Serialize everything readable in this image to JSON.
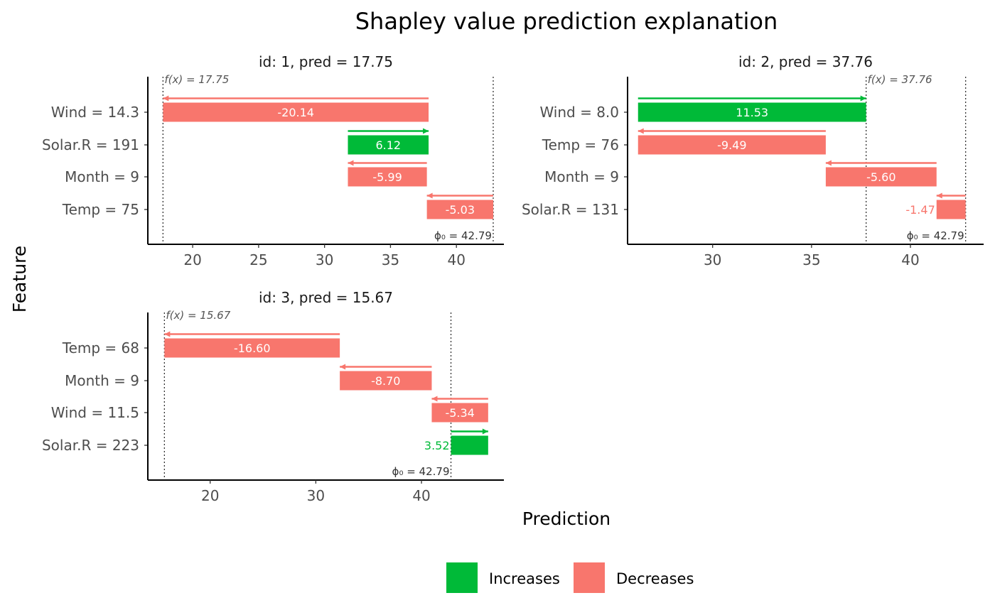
{
  "chart_data": {
    "type": "bar",
    "subtype": "waterfall",
    "title": "Shapley value prediction explanation",
    "xlabel": "Prediction",
    "ylabel": "Feature",
    "legend": {
      "position": "bottom",
      "entries": [
        {
          "name": "Increases",
          "color": "#00BA38"
        },
        {
          "name": "Decreases",
          "color": "#F8766D"
        }
      ]
    },
    "colors": {
      "increase": "#00BA38",
      "decrease": "#F8766D"
    },
    "panels": [
      {
        "title": "id: 1, pred = 17.75",
        "phi0_label": "ϕ₀ = 42.79",
        "fx_label": "f(x) = 17.75",
        "phi0": 42.79,
        "pred": 17.75,
        "xlim": [
          16.6,
          43.6
        ],
        "xticks": [
          20,
          25,
          30,
          35,
          40
        ],
        "xtick_labels": [
          "20",
          "25",
          "30",
          "35",
          "40"
        ],
        "features": [
          {
            "label": "Wind = 14.3",
            "start": 37.89,
            "end": 17.75,
            "value_label": "-20.14"
          },
          {
            "label": "Solar.R = 191",
            "start": 31.77,
            "end": 37.89,
            "value_label": "6.12"
          },
          {
            "label": "Month = 9",
            "start": 37.76,
            "end": 31.77,
            "value_label": "-5.99"
          },
          {
            "label": "Temp = 75",
            "start": 42.79,
            "end": 37.76,
            "value_label": "-5.03"
          }
        ]
      },
      {
        "title": "id: 2, pred = 37.76",
        "phi0_label": "ϕ₀ = 42.79",
        "fx_label": "f(x) = 37.76",
        "phi0": 42.79,
        "pred": 37.76,
        "xlim": [
          25.7,
          43.7
        ],
        "xticks": [
          30,
          35,
          40
        ],
        "xtick_labels": [
          "30",
          "35",
          "40"
        ],
        "features": [
          {
            "label": "Wind = 8.0",
            "start": 26.23,
            "end": 37.76,
            "value_label": "11.53"
          },
          {
            "label": "Temp = 76",
            "start": 35.72,
            "end": 26.23,
            "value_label": "-9.49"
          },
          {
            "label": "Month = 9",
            "start": 41.32,
            "end": 35.72,
            "value_label": "-5.60"
          },
          {
            "label": "Solar.R = 131",
            "start": 42.79,
            "end": 41.32,
            "value_label": "-1.47"
          }
        ]
      },
      {
        "title": "id: 3, pred = 15.67",
        "phi0_label": "ϕ₀ = 42.79",
        "fx_label": "f(x) = 15.67",
        "phi0": 42.79,
        "pred": 15.67,
        "xlim": [
          14.1,
          47.8
        ],
        "xticks": [
          20,
          30,
          40
        ],
        "xtick_labels": [
          "20",
          "30",
          "40"
        ],
        "features": [
          {
            "label": "Temp = 68",
            "start": 32.27,
            "end": 15.67,
            "value_label": "-16.60"
          },
          {
            "label": "Month = 9",
            "start": 40.97,
            "end": 32.27,
            "value_label": "-8.70"
          },
          {
            "label": "Wind = 11.5",
            "start": 46.31,
            "end": 40.97,
            "value_label": "-5.34"
          },
          {
            "label": "Solar.R = 223",
            "start": 42.79,
            "end": 46.31,
            "value_label": "3.52"
          }
        ]
      }
    ]
  }
}
